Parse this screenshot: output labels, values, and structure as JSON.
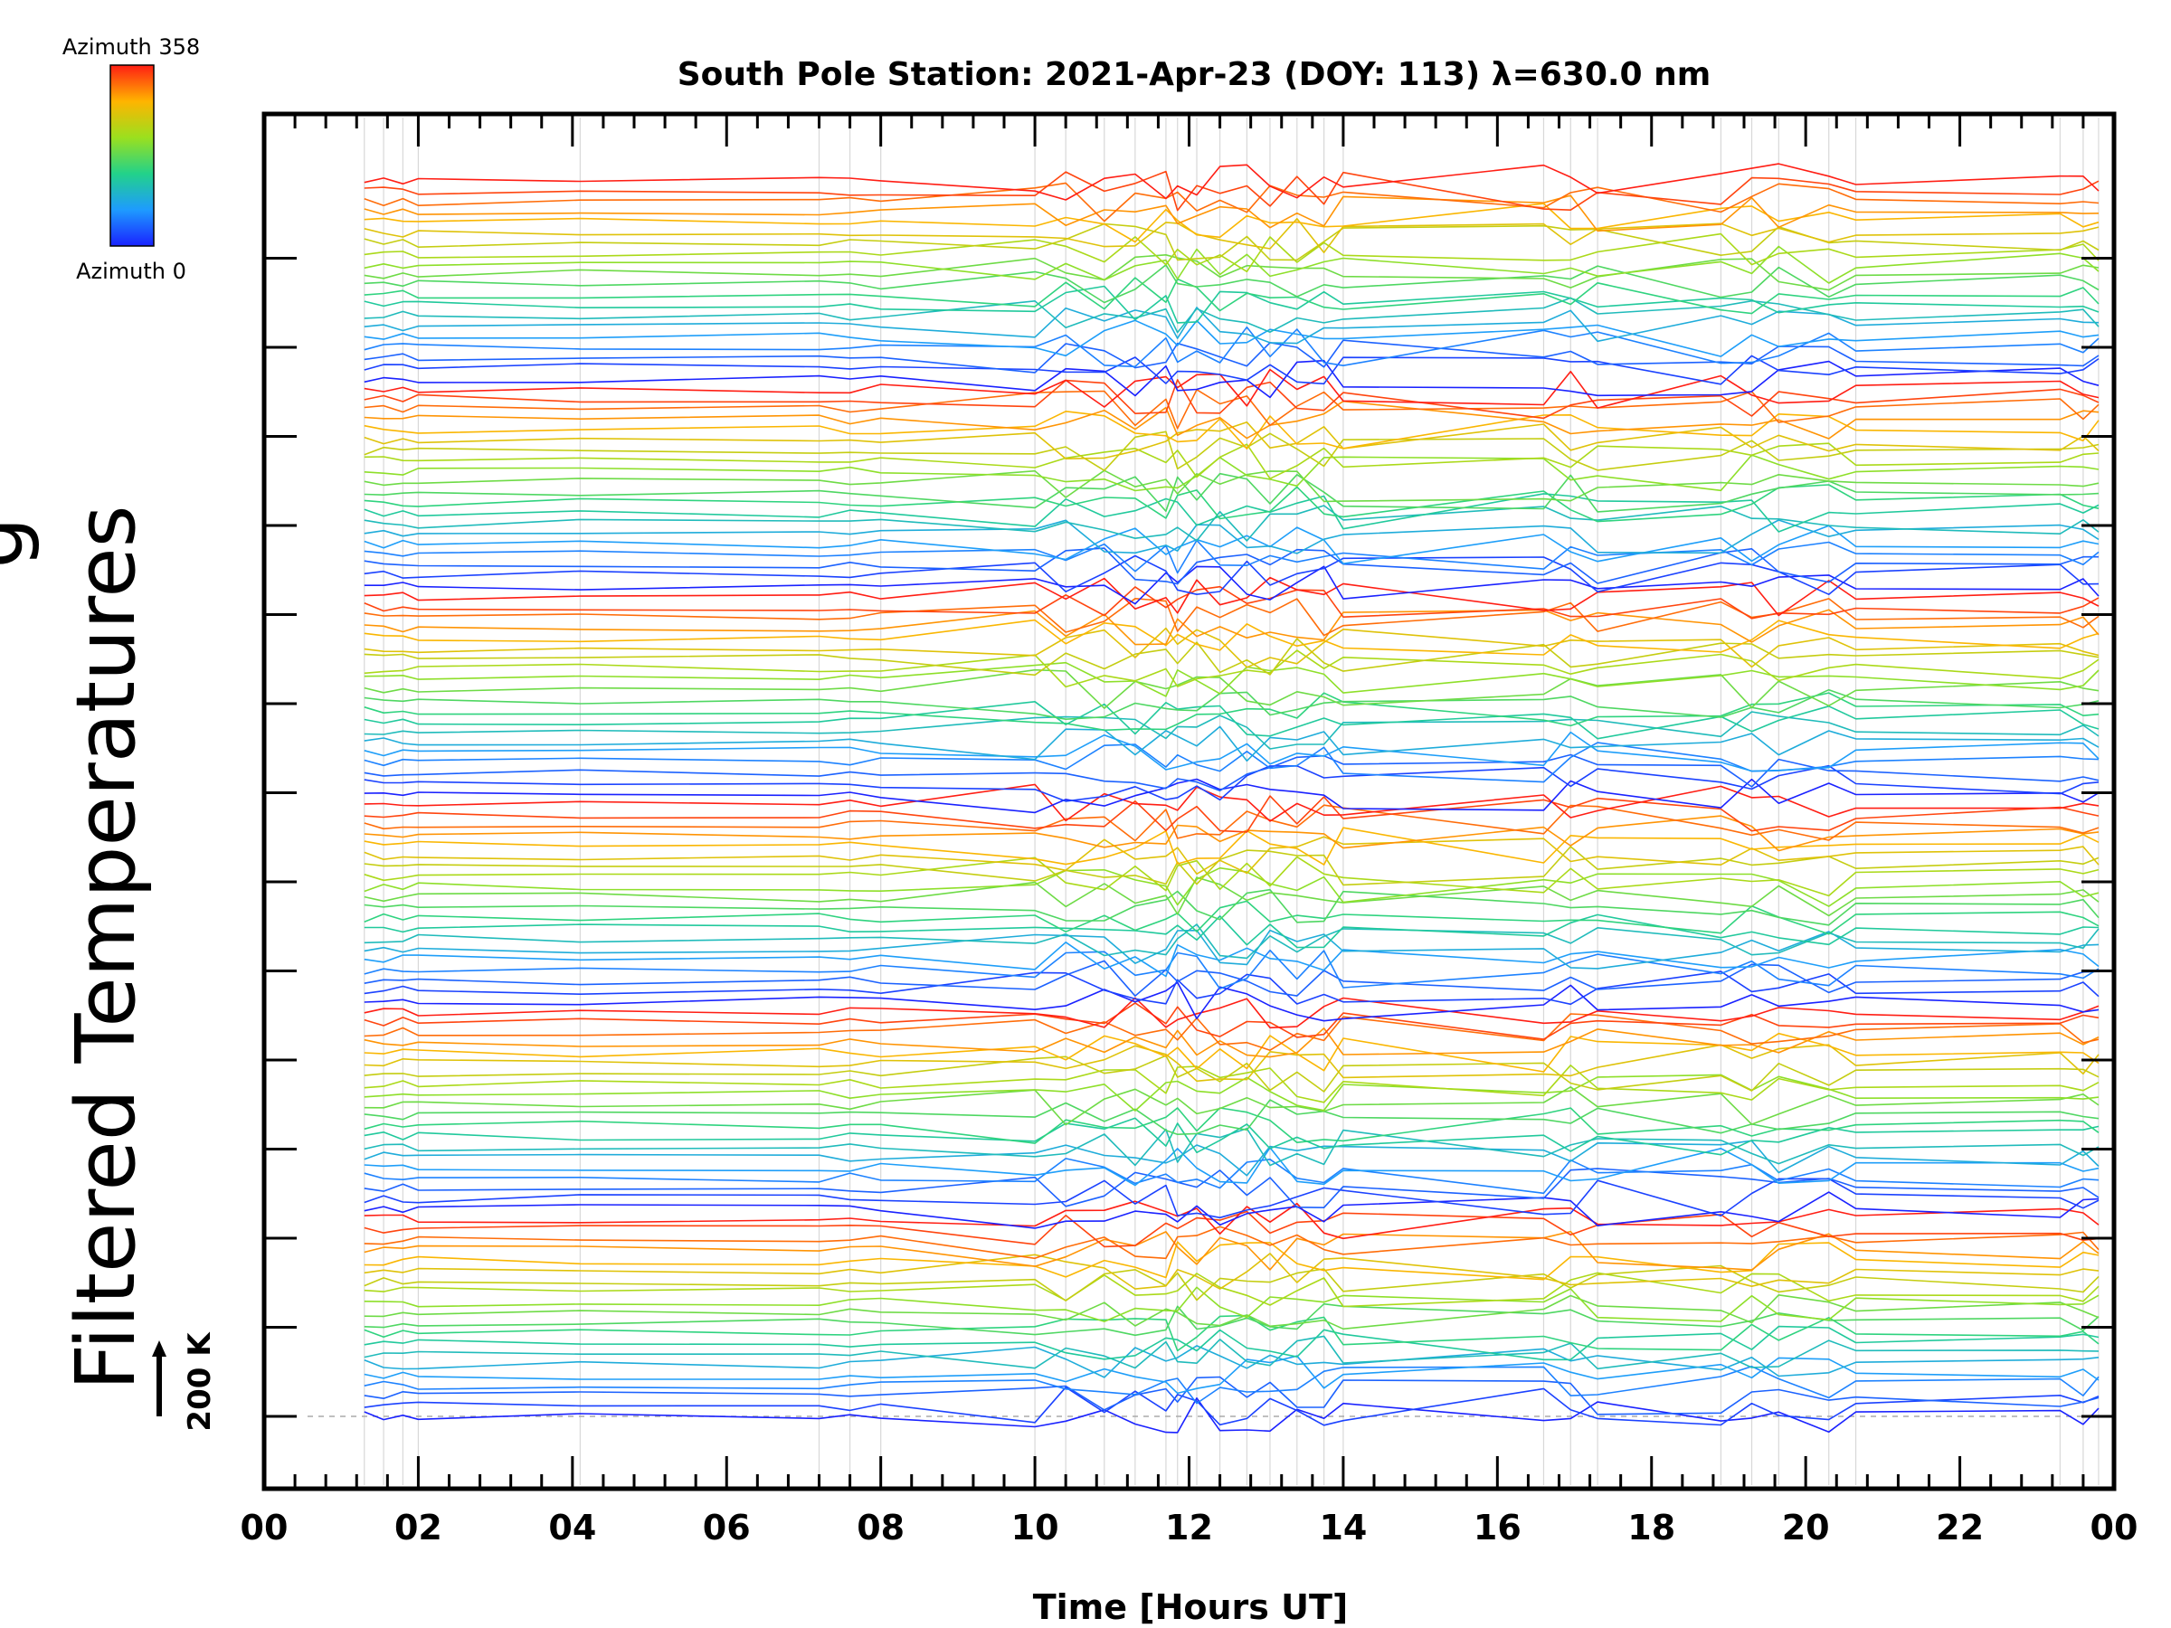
{
  "chart_data": {
    "type": "line",
    "title": "South Pole Station: 2021-Apr-23 (DOY: 113) λ=630.0 nm",
    "xlabel": "Time [Hours UT]",
    "ylabel": "Filtered Temperatures",
    "ylabel_partial": "g",
    "xlim": [
      0,
      24
    ],
    "x_ticks": [
      "00",
      "02",
      "04",
      "06",
      "08",
      "10",
      "12",
      "14",
      "16",
      "18",
      "20",
      "22",
      "00"
    ],
    "y_tick_count": 14,
    "scale_bar_label": "200 K",
    "colorbar": {
      "top_label": "Azimuth  358",
      "bottom_label": "Azimuth  0",
      "min": 0,
      "max": 358
    },
    "series_count": 120,
    "sample_times": [
      1.3,
      1.55,
      1.8,
      2.0,
      4.1,
      7.2,
      7.6,
      8.0,
      10.0,
      10.4,
      10.9,
      11.3,
      11.7,
      11.85,
      12.1,
      12.4,
      12.75,
      13.05,
      13.4,
      13.75,
      14.0,
      16.6,
      16.95,
      17.3,
      18.9,
      19.3,
      19.65,
      20.3,
      20.65,
      23.3,
      23.6,
      23.8
    ],
    "disturbed_windows": [
      {
        "start": 10.0,
        "end": 14.0
      },
      {
        "start": 16.6,
        "end": 17.4
      },
      {
        "start": 18.9,
        "end": 20.4
      }
    ],
    "colors": {
      "background": "#ffffff",
      "axis": "#000000",
      "grid": "#d8d8d8",
      "baseline": "#aaaaaa"
    }
  }
}
